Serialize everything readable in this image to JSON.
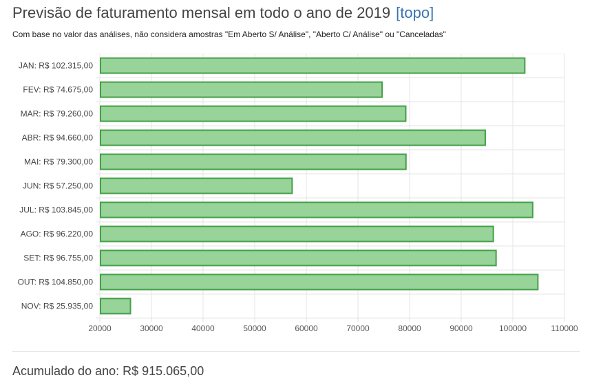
{
  "header": {
    "title": "Previsão de faturamento mensal em todo o ano de 2019",
    "top_link": "[topo]",
    "subtitle": "Com base no valor das análises, não considera amostras \"Em Aberto S/ Análise\", \"Aberto C/ Análise\" ou \"Canceladas\""
  },
  "chart_data": {
    "type": "bar",
    "orientation": "horizontal",
    "categories": [
      "JAN: R$ 102.315,00",
      "FEV: R$ 74.675,00",
      "MAR: R$ 79.260,00",
      "ABR: R$ 94.660,00",
      "MAI: R$ 79.300,00",
      "JUN: R$ 57.250,00",
      "JUL: R$ 103.845,00",
      "AGO: R$ 96.220,00",
      "SET: R$ 96.755,00",
      "OUT: R$ 104.850,00",
      "NOV: R$ 25.935,00"
    ],
    "values": [
      102315,
      74675,
      79260,
      94660,
      79300,
      57250,
      103845,
      96220,
      96755,
      104850,
      25935
    ],
    "xlim": [
      20000,
      110000
    ],
    "xticks": [
      20000,
      30000,
      40000,
      50000,
      60000,
      70000,
      80000,
      90000,
      100000,
      110000
    ],
    "grid": true,
    "colors": {
      "fill": "#98d39a",
      "stroke": "#43a047",
      "grid": "#e4e4e4"
    }
  },
  "footer": {
    "total": "Acumulado do ano: R$ 915.065,00"
  }
}
